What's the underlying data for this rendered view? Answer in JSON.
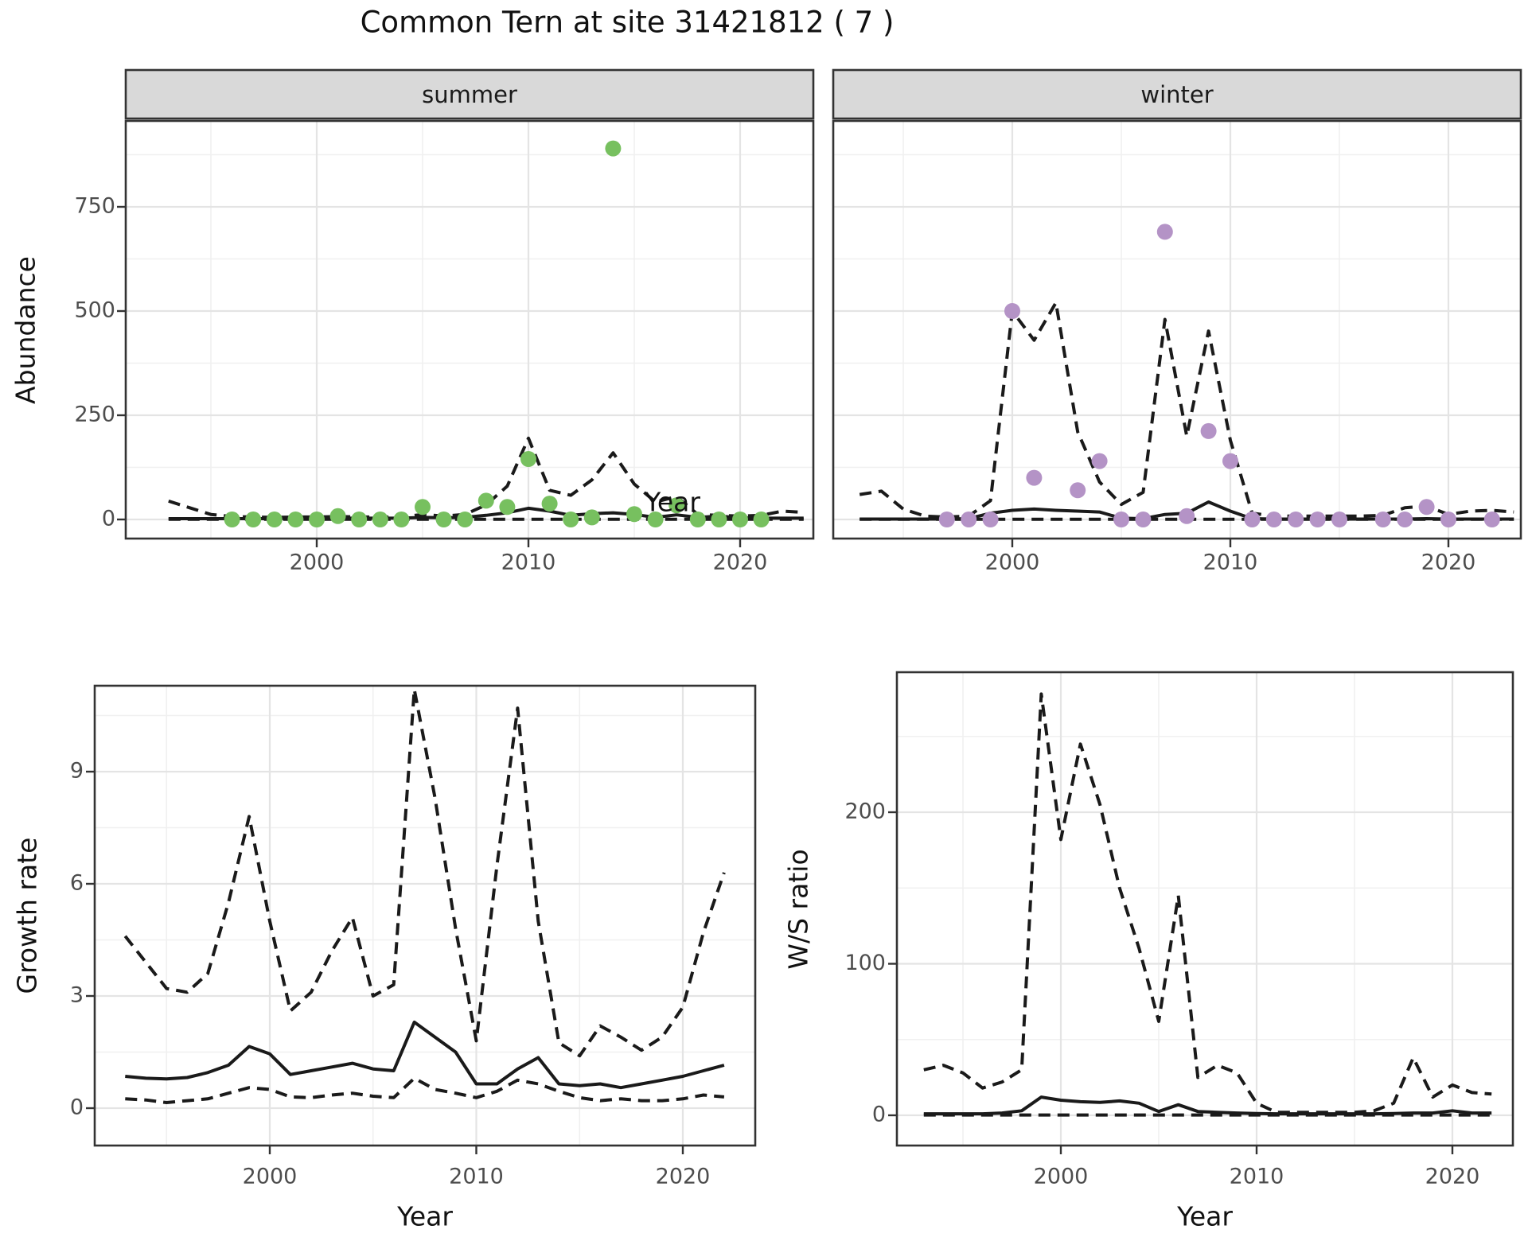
{
  "title": "Common Tern at site 31421812 ( 7 )",
  "colors": {
    "summer_point": "#77C05F",
    "winter_point": "#B493C6",
    "line": "#1A1A1A",
    "strip_bg": "#D9D9D9",
    "panel_border": "#333333",
    "grid_major": "#E4E4E4",
    "grid_minor": "#F0F0F0",
    "tick_text": "#4D4D4D"
  },
  "axes": {
    "x_label": "Year",
    "abundance_label": "Abundance",
    "growth_label": "Growth rate",
    "ws_label": "W/S ratio"
  },
  "chart_data": [
    {
      "id": "abundance-summer",
      "type": "scatter",
      "facet_label": "summer",
      "xlabel": "Year",
      "ylabel": "Abundance",
      "xlim": [
        1991,
        2023.5
      ],
      "ylim": [
        0,
        955
      ],
      "x_ticks": [
        2000,
        2010,
        2020
      ],
      "x_minor": [
        1995,
        2005,
        2015
      ],
      "y_ticks": [
        0,
        250,
        500,
        750
      ],
      "y_minor": [
        125,
        375,
        625,
        875
      ],
      "series": [
        {
          "name": "observed-points",
          "kind": "points",
          "x": [
            1996,
            1997,
            1998,
            1999,
            2000,
            2001,
            2002,
            2003,
            2004,
            2005,
            2006,
            2007,
            2008,
            2009,
            2010,
            2011,
            2012,
            2013,
            2014,
            2015,
            2016,
            2017,
            2018,
            2019,
            2020,
            2021
          ],
          "y": [
            0,
            0,
            0,
            0,
            0,
            8,
            0,
            0,
            0,
            30,
            0,
            0,
            45,
            30,
            145,
            38,
            0,
            5,
            890,
            13,
            0,
            34,
            0,
            0,
            0,
            0
          ]
        },
        {
          "name": "mean",
          "kind": "line",
          "style": "solid",
          "x": [
            1993,
            1994,
            1995,
            1996,
            1997,
            1998,
            1999,
            2000,
            2001,
            2002,
            2003,
            2004,
            2005,
            2006,
            2007,
            2008,
            2009,
            2010,
            2011,
            2012,
            2013,
            2014,
            2015,
            2016,
            2017,
            2018,
            2019,
            2020,
            2021,
            2022,
            2023
          ],
          "y": [
            2,
            2,
            2,
            2,
            2,
            2,
            3,
            3,
            3,
            3,
            3,
            3,
            5,
            4,
            5,
            10,
            16,
            27,
            20,
            10,
            14,
            16,
            12,
            5,
            11,
            5,
            8,
            4,
            3,
            3,
            3
          ]
        },
        {
          "name": "upper-ci",
          "kind": "line",
          "style": "dashed",
          "x": [
            1993,
            1994,
            1995,
            1996,
            1997,
            1998,
            1999,
            2000,
            2001,
            2002,
            2003,
            2004,
            2005,
            2006,
            2007,
            2008,
            2009,
            2010,
            2011,
            2012,
            2013,
            2014,
            2015,
            2016,
            2017,
            2018,
            2019,
            2020,
            2021,
            2022,
            2023
          ],
          "y": [
            44,
            28,
            12,
            7,
            6,
            5,
            6,
            6,
            7,
            6,
            6,
            6,
            12,
            8,
            12,
            35,
            80,
            195,
            70,
            58,
            95,
            160,
            85,
            42,
            55,
            12,
            10,
            8,
            10,
            20,
            17
          ]
        },
        {
          "name": "lower-ci",
          "kind": "line",
          "style": "dashed",
          "x": [
            1993,
            1994,
            1995,
            1996,
            1997,
            1998,
            1999,
            2000,
            2001,
            2002,
            2003,
            2004,
            2005,
            2006,
            2007,
            2008,
            2009,
            2010,
            2011,
            2012,
            2013,
            2014,
            2015,
            2016,
            2017,
            2018,
            2019,
            2020,
            2021,
            2022,
            2023
          ],
          "y": [
            0.5,
            0.5,
            0.5,
            0.5,
            0.5,
            0.5,
            0.5,
            0.5,
            0.5,
            0.5,
            0.5,
            0.5,
            0.5,
            0.5,
            0.5,
            0.5,
            0.5,
            0.5,
            0.5,
            0.5,
            0.5,
            0.5,
            0.5,
            0.5,
            0.5,
            0.5,
            0.5,
            0.5,
            0.5,
            0.5,
            0.5
          ]
        }
      ]
    },
    {
      "id": "abundance-winter",
      "type": "scatter",
      "facet_label": "winter",
      "xlabel": "Year",
      "ylabel": "Abundance",
      "xlim": [
        1991,
        2023.5
      ],
      "ylim": [
        0,
        955
      ],
      "x_ticks": [
        2000,
        2010,
        2020
      ],
      "x_minor": [
        1995,
        2005,
        2015
      ],
      "y_ticks": [
        0,
        250,
        500,
        750
      ],
      "y_minor": [
        125,
        375,
        625,
        875
      ],
      "series": [
        {
          "name": "observed-points",
          "kind": "points",
          "x": [
            1997,
            1998,
            1999,
            2000,
            2001,
            2003,
            2004,
            2005,
            2006,
            2007,
            2008,
            2009,
            2010,
            2011,
            2012,
            2013,
            2014,
            2015,
            2017,
            2018,
            2019,
            2020,
            2022
          ],
          "y": [
            0,
            0,
            0,
            500,
            100,
            70,
            140,
            0,
            0,
            690,
            8,
            212,
            140,
            0,
            0,
            0,
            0,
            0,
            0,
            0,
            30,
            0,
            0
          ]
        },
        {
          "name": "mean",
          "kind": "line",
          "style": "solid",
          "x": [
            1993,
            1994,
            1995,
            1996,
            1997,
            1998,
            1999,
            2000,
            2001,
            2002,
            2003,
            2004,
            2005,
            2006,
            2007,
            2008,
            2009,
            2010,
            2011,
            2012,
            2013,
            2014,
            2015,
            2016,
            2017,
            2018,
            2019,
            2020,
            2021,
            2022,
            2023
          ],
          "y": [
            1,
            1,
            1,
            1,
            1,
            2,
            15,
            22,
            25,
            22,
            20,
            18,
            3,
            2,
            12,
            15,
            42,
            20,
            2,
            1,
            1,
            1,
            1,
            1,
            1,
            1,
            2,
            1,
            1,
            1,
            1
          ]
        },
        {
          "name": "upper-ci",
          "kind": "line",
          "style": "dashed",
          "x": [
            1993,
            1994,
            1995,
            1996,
            1997,
            1998,
            1999,
            2000,
            2001,
            2002,
            2003,
            2004,
            2005,
            2006,
            2007,
            2008,
            2009,
            2010,
            2011,
            2012,
            2013,
            2014,
            2015,
            2016,
            2017,
            2018,
            2019,
            2020,
            2021,
            2022,
            2023
          ],
          "y": [
            60,
            68,
            25,
            8,
            6,
            8,
            45,
            500,
            430,
            520,
            210,
            90,
            36,
            65,
            480,
            200,
            452,
            190,
            15,
            8,
            8,
            8,
            8,
            8,
            10,
            28,
            32,
            12,
            20,
            22,
            18
          ]
        },
        {
          "name": "lower-ci",
          "kind": "line",
          "style": "dashed",
          "x": [
            1993,
            1994,
            1995,
            1996,
            1997,
            1998,
            1999,
            2000,
            2001,
            2002,
            2003,
            2004,
            2005,
            2006,
            2007,
            2008,
            2009,
            2010,
            2011,
            2012,
            2013,
            2014,
            2015,
            2016,
            2017,
            2018,
            2019,
            2020,
            2021,
            2022,
            2023
          ],
          "y": [
            0.5,
            0.5,
            0.5,
            0.5,
            0.5,
            0.5,
            0.5,
            0.5,
            0.5,
            0.5,
            0.5,
            0.5,
            0.5,
            0.5,
            0.5,
            0.5,
            0.5,
            0.5,
            0.5,
            0.5,
            0.5,
            0.5,
            0.5,
            0.5,
            0.5,
            0.5,
            0.5,
            0.5,
            0.5,
            0.5,
            0.5
          ]
        }
      ]
    },
    {
      "id": "growth-rate",
      "type": "line",
      "facet_label": "",
      "xlabel": "Year",
      "ylabel": "Growth rate",
      "xlim": [
        1991.5,
        2023.5
      ],
      "ylim": [
        0,
        11.3
      ],
      "x_ticks": [
        2000,
        2010,
        2020
      ],
      "x_minor": [
        1995,
        2005,
        2015
      ],
      "y_ticks": [
        0,
        3,
        6,
        9
      ],
      "y_minor": [
        1.5,
        4.5,
        7.5,
        10.5
      ],
      "series": [
        {
          "name": "mean",
          "kind": "line",
          "style": "solid",
          "x": [
            1993,
            1994,
            1995,
            1996,
            1997,
            1998,
            1999,
            2000,
            2001,
            2002,
            2003,
            2004,
            2005,
            2006,
            2007,
            2008,
            2009,
            2010,
            2011,
            2012,
            2013,
            2014,
            2015,
            2016,
            2017,
            2018,
            2019,
            2020,
            2021,
            2022
          ],
          "y": [
            0.85,
            0.8,
            0.78,
            0.82,
            0.95,
            1.15,
            1.65,
            1.45,
            0.9,
            1.0,
            1.1,
            1.2,
            1.05,
            1.0,
            2.3,
            1.9,
            1.5,
            0.65,
            0.65,
            1.05,
            1.35,
            0.65,
            0.6,
            0.65,
            0.55,
            0.65,
            0.75,
            0.85,
            1.0,
            1.15
          ]
        },
        {
          "name": "upper-ci",
          "kind": "line",
          "style": "dashed",
          "x": [
            1993,
            1994,
            1995,
            1996,
            1997,
            1998,
            1999,
            2000,
            2001,
            2002,
            2003,
            2004,
            2005,
            2006,
            2007,
            2008,
            2009,
            2010,
            2011,
            2012,
            2013,
            2014,
            2015,
            2016,
            2017,
            2018,
            2019,
            2020,
            2021,
            2022
          ],
          "y": [
            4.6,
            3.9,
            3.2,
            3.1,
            3.6,
            5.5,
            7.8,
            5.0,
            2.6,
            3.1,
            4.2,
            5.1,
            3.0,
            3.3,
            11.2,
            8.3,
            4.8,
            1.8,
            6.5,
            10.7,
            5.0,
            1.75,
            1.4,
            2.2,
            1.9,
            1.55,
            1.9,
            2.7,
            4.7,
            6.3
          ]
        },
        {
          "name": "lower-ci",
          "kind": "line",
          "style": "dashed",
          "x": [
            1993,
            1994,
            1995,
            1996,
            1997,
            1998,
            1999,
            2000,
            2001,
            2002,
            2003,
            2004,
            2005,
            2006,
            2007,
            2008,
            2009,
            2010,
            2011,
            2012,
            2013,
            2014,
            2015,
            2016,
            2017,
            2018,
            2019,
            2020,
            2021,
            2022
          ],
          "y": [
            0.25,
            0.22,
            0.15,
            0.2,
            0.25,
            0.4,
            0.55,
            0.5,
            0.3,
            0.28,
            0.35,
            0.4,
            0.32,
            0.28,
            0.8,
            0.5,
            0.4,
            0.28,
            0.45,
            0.75,
            0.65,
            0.45,
            0.28,
            0.2,
            0.25,
            0.2,
            0.2,
            0.25,
            0.35,
            0.3
          ]
        }
      ]
    },
    {
      "id": "ws-ratio",
      "type": "line",
      "facet_label": "",
      "xlabel": "Year",
      "ylabel": "W/S ratio",
      "xlim": [
        1991.5,
        2023
      ],
      "ylim": [
        0,
        292
      ],
      "x_ticks": [
        2000,
        2010,
        2020
      ],
      "x_minor": [
        1995,
        2005,
        2015
      ],
      "y_ticks": [
        0,
        100,
        200
      ],
      "y_minor": [
        50,
        150,
        250
      ],
      "series": [
        {
          "name": "mean",
          "kind": "line",
          "style": "solid",
          "x": [
            1993,
            1994,
            1995,
            1996,
            1997,
            1998,
            1999,
            2000,
            2001,
            2002,
            2003,
            2004,
            2005,
            2006,
            2007,
            2008,
            2009,
            2010,
            2011,
            2012,
            2013,
            2014,
            2015,
            2016,
            2017,
            2018,
            2019,
            2020,
            2021,
            2022
          ],
          "y": [
            1,
            1,
            1,
            1,
            1.5,
            3,
            12,
            10,
            9,
            8.5,
            9.5,
            8,
            2.5,
            7,
            2.5,
            2,
            1.5,
            1.2,
            1,
            1,
            1,
            1,
            1,
            1,
            1.2,
            1.5,
            1.5,
            3,
            1.5,
            1.5
          ]
        },
        {
          "name": "upper-ci",
          "kind": "line",
          "style": "dashed",
          "x": [
            1993,
            1994,
            1995,
            1996,
            1997,
            1998,
            1999,
            2000,
            2001,
            2002,
            2003,
            2004,
            2005,
            2006,
            2007,
            2008,
            2009,
            2010,
            2011,
            2012,
            2013,
            2014,
            2015,
            2016,
            2017,
            2018,
            2019,
            2020,
            2021,
            2022
          ],
          "y": [
            30,
            33,
            28,
            18,
            22,
            30,
            278,
            182,
            245,
            205,
            150,
            110,
            62,
            145,
            25,
            33,
            28,
            8,
            2,
            2,
            2,
            2,
            2,
            3,
            8,
            38,
            12,
            20,
            15,
            14
          ]
        },
        {
          "name": "lower-ci",
          "kind": "line",
          "style": "dashed",
          "x": [
            1993,
            1994,
            1995,
            1996,
            1997,
            1998,
            1999,
            2000,
            2001,
            2002,
            2003,
            2004,
            2005,
            2006,
            2007,
            2008,
            2009,
            2010,
            2011,
            2012,
            2013,
            2014,
            2015,
            2016,
            2017,
            2018,
            2019,
            2020,
            2021,
            2022
          ],
          "y": [
            0.2,
            0.2,
            0.2,
            0.2,
            0.2,
            0.2,
            0.2,
            0.2,
            0.2,
            0.2,
            0.2,
            0.2,
            0.2,
            0.2,
            0.2,
            0.2,
            0.2,
            0.2,
            0.2,
            0.2,
            0.2,
            0.2,
            0.2,
            0.2,
            0.2,
            0.2,
            0.2,
            0.2,
            0.2,
            0.2
          ]
        }
      ]
    }
  ]
}
